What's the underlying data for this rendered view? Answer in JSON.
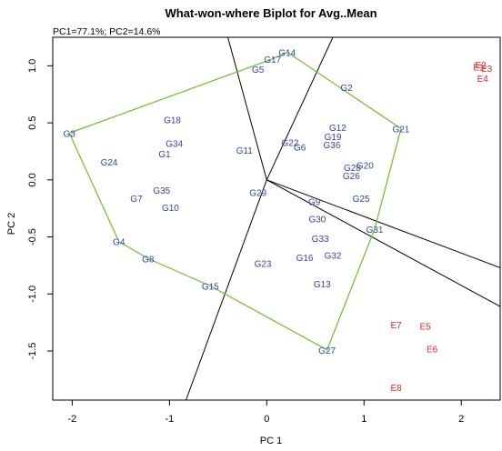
{
  "chart_data": {
    "type": "scatter",
    "title": "What-won-where Biplot for Avg..Mean",
    "subtitle": "PC1=77.1%; PC2=14.6%",
    "xlabel": "PC 1",
    "ylabel": "PC 2",
    "xlim": [
      -2.2,
      2.4
    ],
    "ylim": [
      -1.93,
      1.25
    ],
    "x_ticks": [
      -2,
      -1,
      0,
      1,
      2
    ],
    "x_tick_labels": [
      "-2",
      "-1",
      "0",
      "1",
      "2"
    ],
    "y_ticks": [
      -1.5,
      -1.0,
      -0.5,
      0.0,
      0.5,
      1.0
    ],
    "y_tick_labels": [
      "-1.5",
      "-1.0",
      "-0.5",
      "0.0",
      "0.5",
      "1.0"
    ],
    "colors": {
      "genotype": "#3344aa",
      "environment": "#e8231e",
      "hull": "#6abf2a",
      "rays": "#000000"
    },
    "genotypes": [
      {
        "label": "G1",
        "x": -1.05,
        "y": 0.23
      },
      {
        "label": "G2",
        "x": 0.82,
        "y": 0.81
      },
      {
        "label": "G3",
        "x": -2.03,
        "y": 0.41
      },
      {
        "label": "G4",
        "x": -1.52,
        "y": -0.54
      },
      {
        "label": "G5",
        "x": -0.09,
        "y": 0.97
      },
      {
        "label": "G6",
        "x": 0.34,
        "y": 0.29
      },
      {
        "label": "G7",
        "x": -1.34,
        "y": -0.16
      },
      {
        "label": "G8",
        "x": -1.22,
        "y": -0.69
      },
      {
        "label": "G9",
        "x": 0.49,
        "y": -0.19
      },
      {
        "label": "G10",
        "x": -0.99,
        "y": -0.24
      },
      {
        "label": "G11",
        "x": -0.23,
        "y": 0.26
      },
      {
        "label": "G12",
        "x": 0.73,
        "y": 0.46
      },
      {
        "label": "G13",
        "x": 0.57,
        "y": -0.91
      },
      {
        "label": "G14",
        "x": 0.21,
        "y": 1.12
      },
      {
        "label": "G15",
        "x": -0.58,
        "y": -0.93
      },
      {
        "label": "G16",
        "x": 0.39,
        "y": -0.68
      },
      {
        "label": "G17",
        "x": 0.06,
        "y": 1.06
      },
      {
        "label": "G18",
        "x": -0.97,
        "y": 0.53
      },
      {
        "label": "G19",
        "x": 0.68,
        "y": 0.38
      },
      {
        "label": "G20",
        "x": 1.01,
        "y": 0.13
      },
      {
        "label": "G21",
        "x": 1.38,
        "y": 0.45
      },
      {
        "label": "G22",
        "x": 0.24,
        "y": 0.33
      },
      {
        "label": "G23",
        "x": -0.04,
        "y": -0.73
      },
      {
        "label": "G24",
        "x": -1.62,
        "y": 0.16
      },
      {
        "label": "G25",
        "x": 0.97,
        "y": -0.16
      },
      {
        "label": "G26",
        "x": 0.87,
        "y": 0.04
      },
      {
        "label": "G27",
        "x": 0.62,
        "y": -1.49
      },
      {
        "label": "G28",
        "x": 0.88,
        "y": 0.11
      },
      {
        "label": "G29",
        "x": -0.09,
        "y": -0.11
      },
      {
        "label": "G30",
        "x": 0.52,
        "y": -0.34
      },
      {
        "label": "G31",
        "x": 1.11,
        "y": -0.43
      },
      {
        "label": "G32",
        "x": 0.68,
        "y": -0.66
      },
      {
        "label": "G33",
        "x": 0.55,
        "y": -0.51
      },
      {
        "label": "G34",
        "x": -0.95,
        "y": 0.32
      },
      {
        "label": "G35",
        "x": -1.08,
        "y": -0.09
      },
      {
        "label": "G36",
        "x": 0.67,
        "y": 0.31
      }
    ],
    "environments": [
      {
        "label": "E1",
        "x": 2.18,
        "y": 0.99
      },
      {
        "label": "E2",
        "x": 2.2,
        "y": 1.01
      },
      {
        "label": "E3",
        "x": 2.26,
        "y": 0.98
      },
      {
        "label": "E4",
        "x": 2.22,
        "y": 0.89
      },
      {
        "label": "E5",
        "x": 1.63,
        "y": -1.28
      },
      {
        "label": "E6",
        "x": 1.7,
        "y": -1.48
      },
      {
        "label": "E7",
        "x": 1.33,
        "y": -1.27
      },
      {
        "label": "E8",
        "x": 1.33,
        "y": -1.82
      }
    ],
    "polygon": [
      "G14",
      "G21",
      "G31",
      "G27",
      "G15",
      "G8",
      "G4",
      "G3",
      "G17"
    ],
    "rays": [
      {
        "x": -0.4,
        "y": 1.25
      },
      {
        "x": 0.68,
        "y": 1.25
      },
      {
        "x": 2.4,
        "y": -0.77
      },
      {
        "x": 2.4,
        "y": -1.11
      },
      {
        "x": -0.83,
        "y": -1.93
      }
    ]
  }
}
